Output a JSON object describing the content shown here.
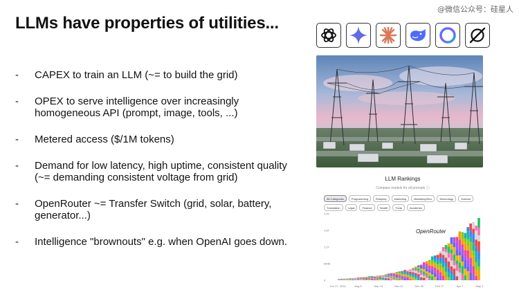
{
  "slide": {
    "title": "LLMs have properties of utilities...",
    "watermark": "@微信公众号：硅星人",
    "bullets": [
      {
        "dash": "-",
        "text": "CAPEX to train an LLM (~= to build the grid)"
      },
      {
        "dash": "-",
        "text": "OPEX to serve intelligence over increasingly homogeneous API (prompt, image, tools, ...)"
      },
      {
        "dash": "-",
        "text": "Metered access ($/1M tokens)"
      },
      {
        "dash": "-",
        "text": "Demand for low latency, high uptime, consistent quality (~= demanding consistent voltage from grid)"
      },
      {
        "dash": "-",
        "text": "OpenRouter ~= Transfer Switch (grid, solar, battery, generator...)"
      },
      {
        "dash": "-",
        "text": "Intelligence \"brownouts\" e.g. when OpenAI goes down."
      }
    ]
  },
  "logos": [
    "openai-icon",
    "gemini-icon",
    "claude-icon",
    "deepseek-icon",
    "copilot-ring-icon",
    "grok-icon"
  ],
  "rankings": {
    "title": "LLM Rankings",
    "subtitle": "Compare models for all prompts ⓘ",
    "categories": [
      "All Categories",
      "Programming",
      "Roleplay",
      "Marketing",
      "Marketing/Seo",
      "Technology",
      "Science",
      "Translation",
      "Legal",
      "Finance",
      "Health",
      "Trivia",
      "Academia"
    ],
    "active_category": "All Categories",
    "brand_label": "OpenRouter"
  },
  "chart_data": {
    "type": "bar",
    "stacked": true,
    "x_ticks": [
      "Jun 17, 2024",
      "Aug 5",
      "Sep 23",
      "Nov 11",
      "Dec 30",
      "Feb 17",
      "Apr 7",
      "May 26"
    ],
    "y_ticks": [
      "0",
      "600B",
      "1.2T",
      "1.8T",
      "2.4T"
    ],
    "ylim": [
      0,
      2.4
    ],
    "y_unit": "T tokens",
    "weekly_totals": [
      0.05,
      0.06,
      0.06,
      0.07,
      0.08,
      0.08,
      0.09,
      0.1,
      0.11,
      0.12,
      0.13,
      0.14,
      0.15,
      0.16,
      0.17,
      0.18,
      0.2,
      0.22,
      0.24,
      0.26,
      0.28,
      0.3,
      0.33,
      0.36,
      0.38,
      0.4,
      0.43,
      0.46,
      0.5,
      0.55,
      0.6,
      0.65,
      0.72,
      0.8,
      0.88,
      0.95,
      1.02,
      1.1,
      1.2,
      1.3,
      1.42,
      1.55,
      1.62,
      1.7,
      1.8,
      1.85,
      1.9,
      2.0,
      2.05,
      2.15,
      2.1,
      2.25
    ],
    "legend": "none",
    "grid": false
  }
}
